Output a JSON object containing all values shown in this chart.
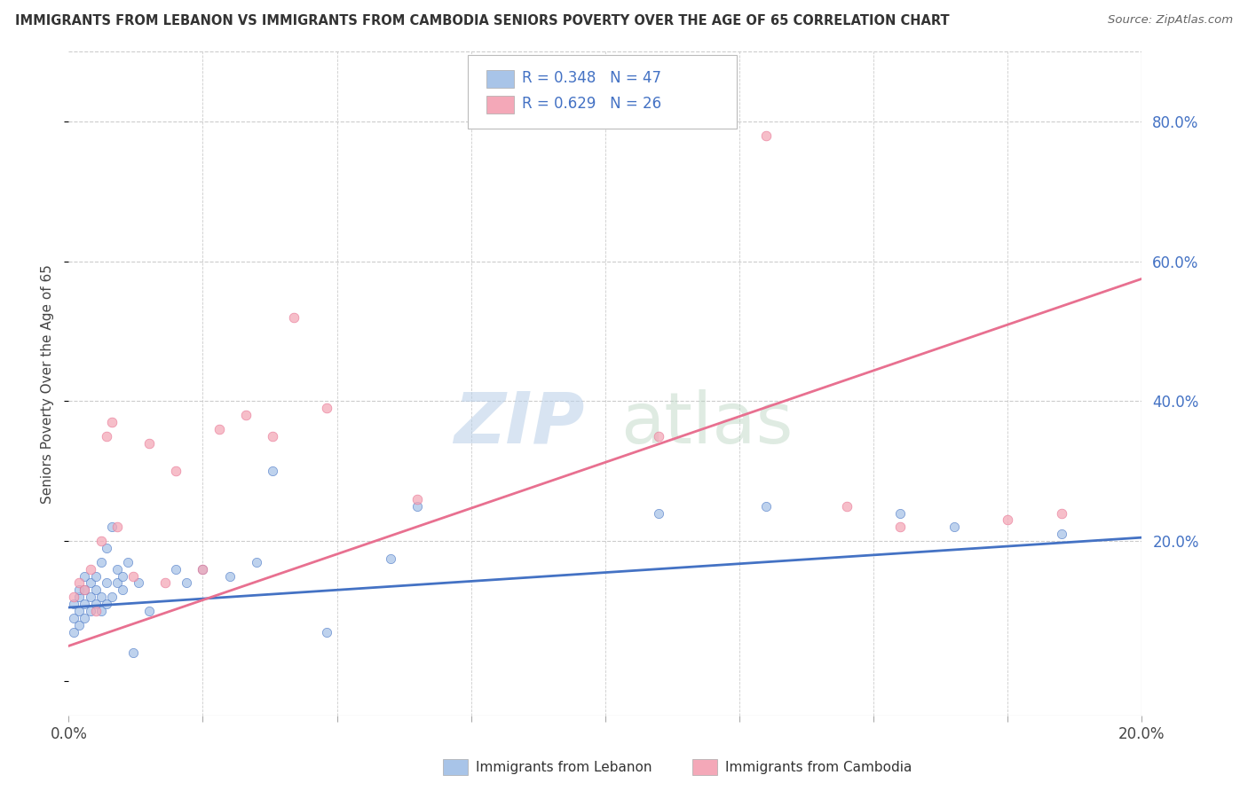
{
  "title": "IMMIGRANTS FROM LEBANON VS IMMIGRANTS FROM CAMBODIA SENIORS POVERTY OVER THE AGE OF 65 CORRELATION CHART",
  "source": "Source: ZipAtlas.com",
  "ylabel": "Seniors Poverty Over the Age of 65",
  "xlim": [
    0.0,
    0.2
  ],
  "ylim": [
    -0.05,
    0.9
  ],
  "x_ticks": [
    0.0,
    0.025,
    0.05,
    0.075,
    0.1,
    0.125,
    0.15,
    0.175,
    0.2
  ],
  "y_ticks_right": [
    0.2,
    0.4,
    0.6,
    0.8
  ],
  "y_tick_labels_right": [
    "20.0%",
    "40.0%",
    "60.0%",
    "80.0%"
  ],
  "grid_color": "#cccccc",
  "lebanon_color": "#a8c4e8",
  "cambodia_color": "#f4a8b8",
  "lebanon_line_color": "#4472c4",
  "cambodia_line_color": "#e87090",
  "lebanon_R": 0.348,
  "lebanon_N": 47,
  "cambodia_R": 0.629,
  "cambodia_N": 26,
  "legend_label_lebanon": "Immigrants from Lebanon",
  "legend_label_cambodia": "Immigrants from Cambodia",
  "title_color": "#333333",
  "source_color": "#666666",
  "stat_color": "#4472c4",
  "lebanon_line_x": [
    0.0,
    0.2
  ],
  "lebanon_line_y": [
    0.105,
    0.205
  ],
  "cambodia_line_x": [
    0.0,
    0.2
  ],
  "cambodia_line_y": [
    0.05,
    0.575
  ],
  "lebanon_scatter_x": [
    0.001,
    0.001,
    0.001,
    0.002,
    0.002,
    0.002,
    0.002,
    0.003,
    0.003,
    0.003,
    0.003,
    0.004,
    0.004,
    0.004,
    0.005,
    0.005,
    0.005,
    0.006,
    0.006,
    0.006,
    0.007,
    0.007,
    0.007,
    0.008,
    0.008,
    0.009,
    0.009,
    0.01,
    0.01,
    0.011,
    0.012,
    0.013,
    0.015,
    0.02,
    0.022,
    0.025,
    0.03,
    0.035,
    0.038,
    0.048,
    0.06,
    0.065,
    0.11,
    0.13,
    0.155,
    0.165,
    0.185
  ],
  "lebanon_scatter_y": [
    0.07,
    0.09,
    0.11,
    0.08,
    0.1,
    0.12,
    0.13,
    0.09,
    0.11,
    0.13,
    0.15,
    0.1,
    0.12,
    0.14,
    0.11,
    0.13,
    0.15,
    0.1,
    0.12,
    0.17,
    0.11,
    0.14,
    0.19,
    0.12,
    0.22,
    0.14,
    0.16,
    0.13,
    0.15,
    0.17,
    0.04,
    0.14,
    0.1,
    0.16,
    0.14,
    0.16,
    0.15,
    0.17,
    0.3,
    0.07,
    0.175,
    0.25,
    0.24,
    0.25,
    0.24,
    0.22,
    0.21
  ],
  "cambodia_scatter_x": [
    0.001,
    0.002,
    0.003,
    0.004,
    0.005,
    0.006,
    0.007,
    0.008,
    0.009,
    0.012,
    0.015,
    0.018,
    0.02,
    0.025,
    0.028,
    0.033,
    0.038,
    0.042,
    0.048,
    0.065,
    0.11,
    0.13,
    0.145,
    0.155,
    0.175,
    0.185
  ],
  "cambodia_scatter_y": [
    0.12,
    0.14,
    0.13,
    0.16,
    0.1,
    0.2,
    0.35,
    0.37,
    0.22,
    0.15,
    0.34,
    0.14,
    0.3,
    0.16,
    0.36,
    0.38,
    0.35,
    0.52,
    0.39,
    0.26,
    0.35,
    0.78,
    0.25,
    0.22,
    0.23,
    0.24
  ]
}
